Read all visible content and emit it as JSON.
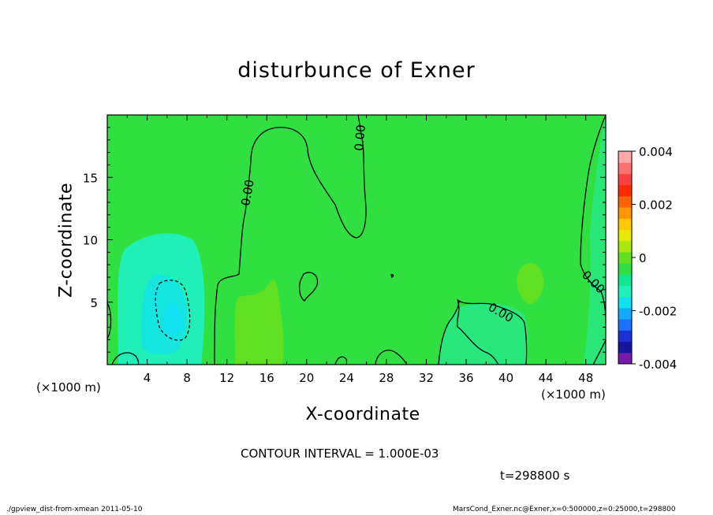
{
  "chart_data": {
    "type": "heatmap",
    "title": "disturbunce of Exner",
    "xlabel": "X-coordinate",
    "ylabel": "Z-coordinate",
    "x_unit_left": "(×1000 m)",
    "x_unit_right": "(×1000 m)",
    "xlim": [
      0,
      50
    ],
    "ylim": [
      0,
      20
    ],
    "x_ticks": [
      4,
      8,
      12,
      16,
      20,
      24,
      28,
      32,
      36,
      40,
      44,
      48
    ],
    "y_ticks": [
      5,
      10,
      15
    ],
    "contour_interval_text": "CONTOUR INTERVAL = 1.000E-03",
    "contour_labels": [
      {
        "text": "0.00",
        "x": 14.0,
        "y": 13.5,
        "angle": -80
      },
      {
        "text": "0.00",
        "x": 25.0,
        "y": 18.2,
        "angle": -85
      },
      {
        "text": "0.00",
        "x": 39.5,
        "y": 4.2,
        "angle": 30
      },
      {
        "text": "0.00",
        "x": 48.5,
        "y": 7.0,
        "angle": 45
      }
    ],
    "colorbar": {
      "min": -0.004,
      "max": 0.004,
      "tick_labels": [
        "0.004",
        "0.002",
        "0",
        "-0.002",
        "-0.004"
      ],
      "colors": [
        "#7a1aa8",
        "#1515a0",
        "#1a30d8",
        "#1a70ff",
        "#14a8ff",
        "#10e0f0",
        "#20f0b8",
        "#10e890",
        "#30e040",
        "#60e020",
        "#a8e810",
        "#e8e800",
        "#ffc800",
        "#ff9600",
        "#ff6400",
        "#ff2a00",
        "#ff4040",
        "#ff7070",
        "#ffa8a8"
      ]
    },
    "time_label": "t=298800 s"
  },
  "footer": {
    "left": "./gpview_dist-from-xmean 2011-05-10",
    "right": "MarsCond_Exner.nc@Exner,x=0:500000,z=0:25000,t=298800"
  }
}
